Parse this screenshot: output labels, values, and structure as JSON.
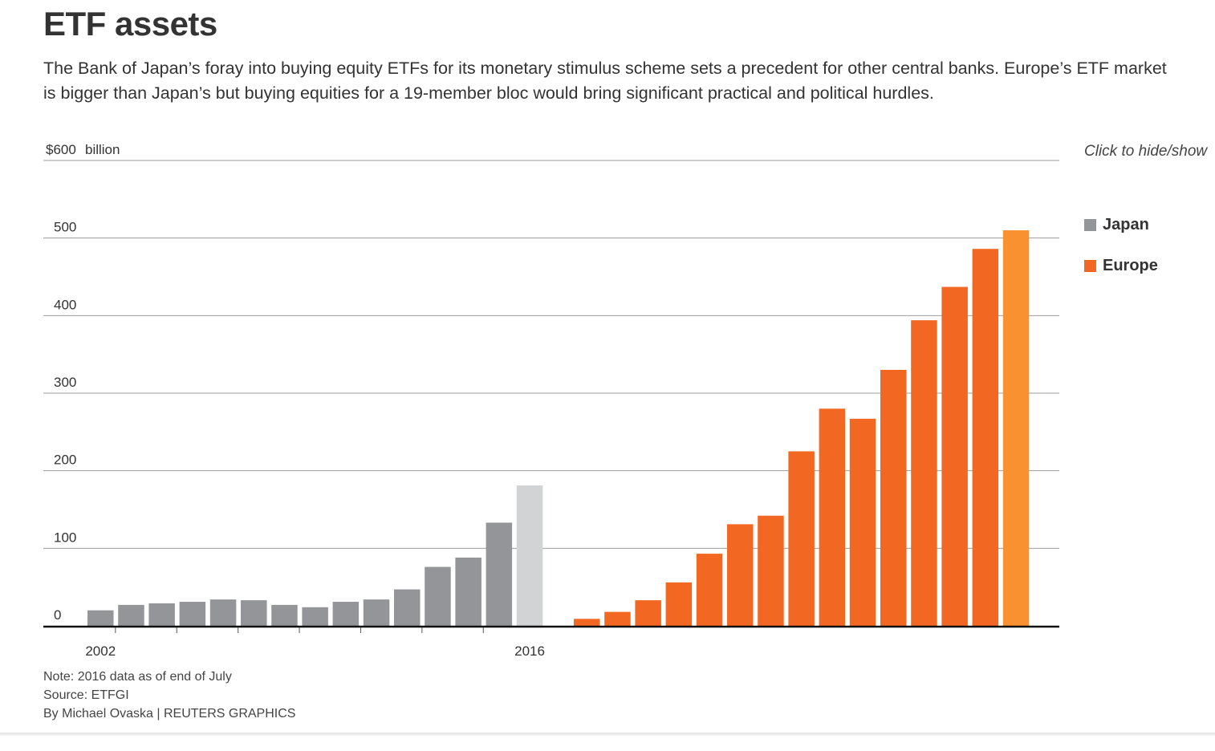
{
  "title": "ETF assets",
  "subtitle": "The Bank of Japan’s foray into buying equity ETFs for its monetary stimulus scheme sets a precedent for other central banks. Europe’s ETF market is bigger than Japan’s but buying equities for a 19-member bloc would bring significant practical and political hurdles.",
  "legend": {
    "hint": "Click to hide/show",
    "items": [
      {
        "label": "Japan",
        "color": "#939598"
      },
      {
        "label": "Europe",
        "color": "#f26722"
      }
    ]
  },
  "footer": {
    "note": "Note: 2016 data as of end of July",
    "source": "Source: ETFGI",
    "credit": "By Michael Ovaska | REUTERS GRAPHICS"
  },
  "chart_data": {
    "type": "bar",
    "ylim": [
      0,
      600
    ],
    "y_ticks": [
      0,
      100,
      200,
      300,
      400,
      500,
      600
    ],
    "y_tick_labels": [
      "0",
      "100",
      "200",
      "300",
      "400",
      "500",
      "$600"
    ],
    "y_unit": "billion",
    "x_tick_labels": [
      "2002",
      "2016"
    ],
    "grid": true,
    "legend_position": "right",
    "series": [
      {
        "name": "Japan",
        "color": "#939598",
        "highlight_color": "#d1d3d4",
        "years": [
          2002,
          2003,
          2004,
          2005,
          2006,
          2007,
          2008,
          2009,
          2010,
          2011,
          2012,
          2013,
          2014,
          2015,
          2016
        ],
        "values": [
          20,
          27,
          29,
          31,
          34,
          33,
          27,
          24,
          31,
          34,
          47,
          76,
          88,
          133,
          181
        ]
      },
      {
        "name": "Europe",
        "color": "#f26722",
        "highlight_color": "#fa9131",
        "years": [
          2002,
          2003,
          2004,
          2005,
          2006,
          2007,
          2008,
          2009,
          2010,
          2011,
          2012,
          2013,
          2014,
          2015,
          2016
        ],
        "values": [
          9,
          18,
          33,
          56,
          93,
          131,
          142,
          225,
          280,
          267,
          330,
          394,
          437,
          486,
          510
        ]
      }
    ]
  }
}
